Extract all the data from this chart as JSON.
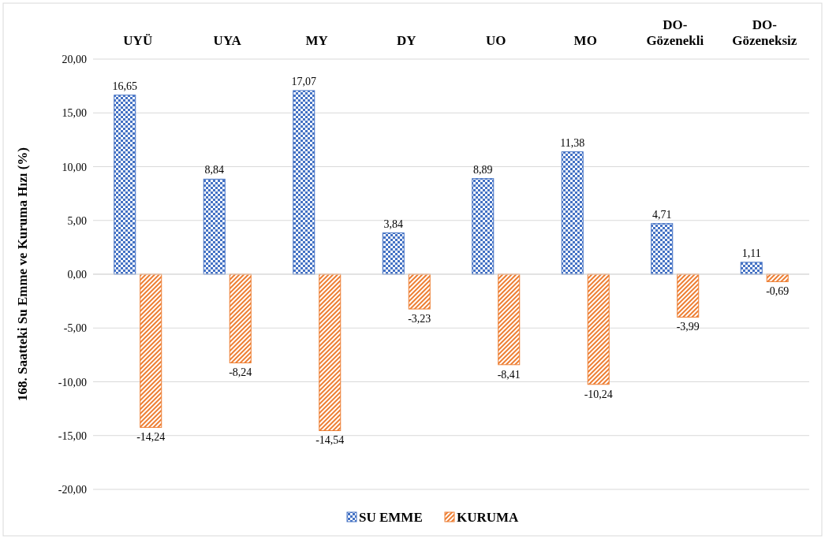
{
  "chart_data": {
    "type": "bar",
    "ylabel": "168. Saatteki Su Emme ve Kuruma Hızı (%)",
    "categories": [
      "UYÜ",
      "UYA",
      "MY",
      "DY",
      "UO",
      "MO",
      "DO-Gözenekli",
      "DO-Gözeneksiz"
    ],
    "series": [
      {
        "name": "SU EMME",
        "color": "#4472c4",
        "values": [
          16.65,
          8.84,
          17.07,
          3.84,
          8.89,
          11.38,
          4.71,
          1.11
        ],
        "value_labels": [
          "16,65",
          "8,84",
          "17,07",
          "3,84",
          "8,89",
          "11,38",
          "4,71",
          "1,11"
        ]
      },
      {
        "name": "KURUMA",
        "color": "#ed7d31",
        "values": [
          -14.24,
          -8.24,
          -14.54,
          -3.23,
          -8.41,
          -10.24,
          -3.99,
          -0.69
        ],
        "value_labels": [
          "-14,24",
          "-8,24",
          "-14,54",
          "-3,23",
          "-8,41",
          "-10,24",
          "-3,99",
          "-0,69"
        ]
      }
    ],
    "ylim": [
      -20,
      20
    ],
    "yticks": [
      {
        "value": -20,
        "label": "-20,00"
      },
      {
        "value": -15,
        "label": "-15,00"
      },
      {
        "value": -10,
        "label": "-10,00"
      },
      {
        "value": -5,
        "label": "-5,00"
      },
      {
        "value": 0,
        "label": "0,00"
      },
      {
        "value": 5,
        "label": "5,00"
      },
      {
        "value": 10,
        "label": "10,00"
      },
      {
        "value": 15,
        "label": "15,00"
      },
      {
        "value": 20,
        "label": "20,00"
      }
    ],
    "grid": "y",
    "legend": "bottom"
  }
}
